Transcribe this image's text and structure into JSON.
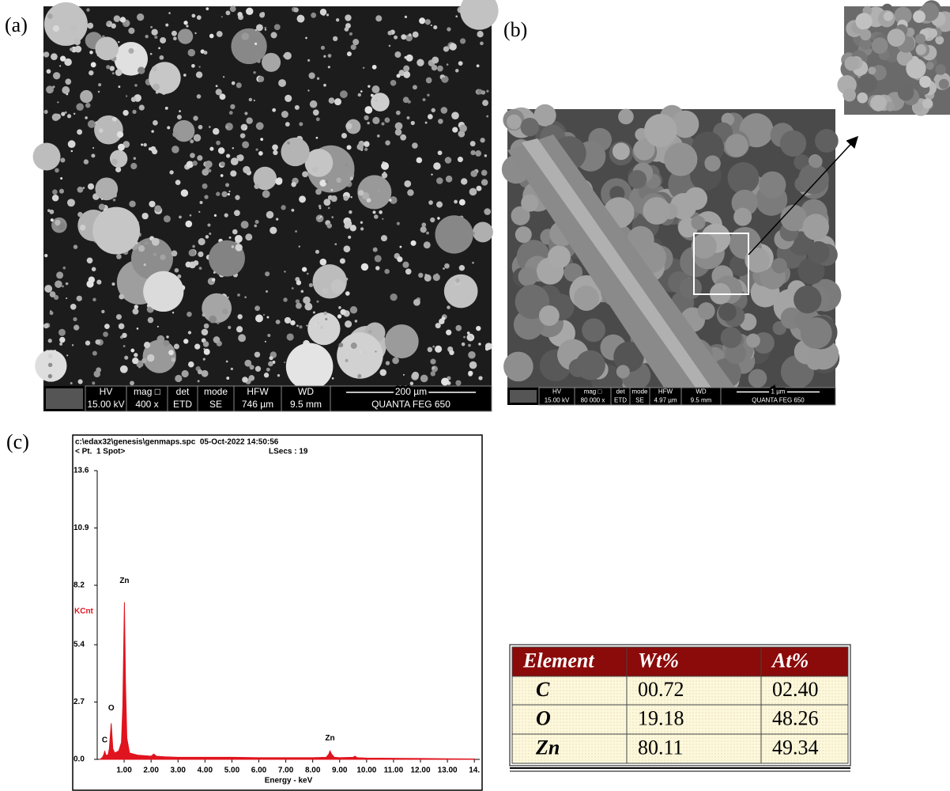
{
  "panel_labels": [
    "(a)",
    "(b)",
    "(c)"
  ],
  "sem_a": {
    "labels": [
      "HV",
      "mag □",
      "det",
      "mode",
      "HFW",
      "WD"
    ],
    "values": [
      "15.00 kV",
      "400 x",
      "ETD",
      "SE",
      "746 µm",
      "9.5 mm"
    ],
    "scale": "200 µm",
    "instrument": "QUANTA FEG 650"
  },
  "sem_b": {
    "labels": [
      "HV",
      "mag □",
      "det",
      "mode",
      "HFW",
      "WD"
    ],
    "values": [
      "15.00 kV",
      "80 000 x",
      "ETD",
      "SE",
      "4.97 µm",
      "9.5 mm"
    ],
    "scale": "1 µm",
    "instrument": "QUANTA FEG 650"
  },
  "chart_data": {
    "type": "area",
    "header": [
      "c:\\edax32\\genesis\\genmaps.spc  05-Oct-2022 14:50:56",
      "< Pt.  1 Spot>",
      "LSecs : 19"
    ],
    "xlabel": "Energy - keV",
    "ylabel": "KCnt",
    "color": "#e0141e",
    "x": [
      0.1,
      0.2,
      0.25,
      0.28,
      0.32,
      0.4,
      0.45,
      0.52,
      0.58,
      0.65,
      0.8,
      0.9,
      0.95,
      1.01,
      1.05,
      1.1,
      1.2,
      1.5,
      2.0,
      2.1,
      2.2,
      2.5,
      3,
      4,
      5,
      6,
      7,
      8,
      8.5,
      8.6,
      8.64,
      8.7,
      8.8,
      9.0,
      9.5,
      9.57,
      9.65,
      10,
      11,
      12,
      13,
      14
    ],
    "values": [
      0,
      0.1,
      0.25,
      0.4,
      0.2,
      0.2,
      0.5,
      1.7,
      0.5,
      0.3,
      0.4,
      0.8,
      2.5,
      7.4,
      3.6,
      1.0,
      0.3,
      0.2,
      0.15,
      0.25,
      0.15,
      0.12,
      0.1,
      0.1,
      0.1,
      0.08,
      0.08,
      0.08,
      0.1,
      0.25,
      0.4,
      0.25,
      0.1,
      0.08,
      0.1,
      0.15,
      0.08,
      0.06,
      0.05,
      0.04,
      0.03,
      0.02
    ],
    "xlim": [
      0,
      14.2
    ],
    "ylim": [
      0,
      13.6
    ],
    "yticks": [
      {
        "value": 0,
        "label": "0.0"
      },
      2.7,
      5.4,
      8.2,
      10.9,
      13.6
    ],
    "xticks": [
      {
        "value": 1,
        "label": "1.00"
      },
      {
        "value": 2,
        "label": "2.00"
      },
      {
        "value": 3,
        "label": "3.00"
      },
      {
        "value": 4,
        "label": "4.00"
      },
      {
        "value": 5,
        "label": "5.00"
      },
      {
        "value": 6,
        "label": "6.00"
      },
      {
        "value": 7,
        "label": "7.00"
      },
      {
        "value": 8,
        "label": "8.00"
      },
      {
        "value": 9,
        "label": "9.00"
      },
      {
        "value": 10,
        "label": "10.00"
      },
      {
        "value": 11,
        "label": "11.00"
      },
      {
        "value": 12,
        "label": "12.00"
      },
      {
        "value": 13,
        "label": "13.00"
      },
      {
        "value": 14,
        "label": "14."
      }
    ],
    "annotations": [
      {
        "text": "C",
        "x": 0.28,
        "y": 0.9
      },
      {
        "text": "O",
        "x": 0.52,
        "y": 2.4
      },
      {
        "text": "Zn",
        "x": 1.01,
        "y": 8.4
      },
      {
        "text": "Zn",
        "x": 8.64,
        "y": 1.0
      }
    ]
  },
  "table": {
    "header": [
      "Element",
      "Wt%",
      "At%"
    ],
    "rows": [
      [
        "C",
        "00.72",
        "02.40"
      ],
      [
        "O",
        "19.18",
        "48.26"
      ],
      [
        "Zn",
        "80.11",
        "49.34"
      ]
    ]
  }
}
